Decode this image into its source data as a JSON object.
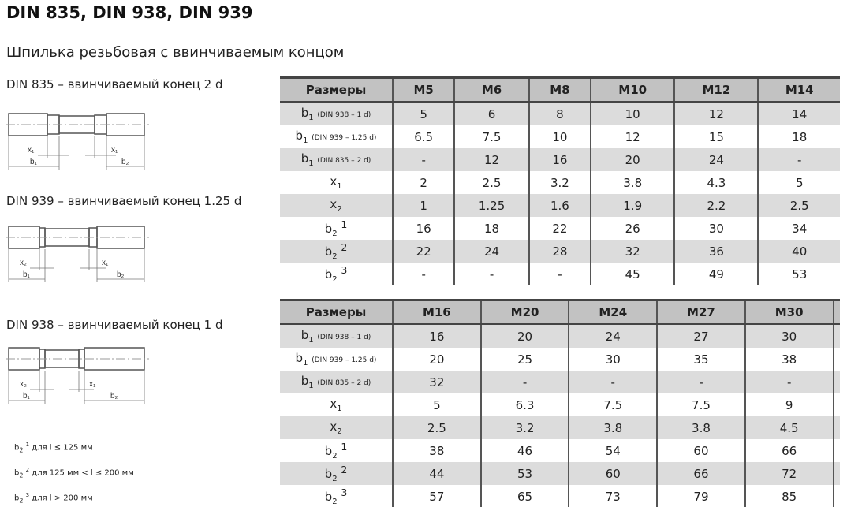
{
  "title": "DIN 835, DIN 938, DIN 939",
  "subtitle": "Шпилька резьбовая с ввинчиваемым концом",
  "figures": [
    {
      "caption": "DIN 835 – ввинчиваемый конец 2 d",
      "left_x": "x₁",
      "left_b": "b₁",
      "right_x": "x₁",
      "right_b": "b₂"
    },
    {
      "caption": "DIN 939 – ввинчиваемый конец 1.25 d",
      "left_x": "x₂",
      "left_b": "b₁",
      "right_x": "x₁",
      "right_b": "b₂"
    },
    {
      "caption": "DIN 938 – ввинчиваемый конец 1 d",
      "left_x": "x₂",
      "left_b": "b₁",
      "right_x": "x₁",
      "right_b": "b₂"
    }
  ],
  "notes": [
    {
      "sup": "1",
      "text": "для l ≤ 125 мм"
    },
    {
      "sup": "2",
      "text": "для 125 мм < l ≤ 200 мм"
    },
    {
      "sup": "3",
      "text": "для l > 200 мм"
    }
  ],
  "row_labels": [
    {
      "base": "b",
      "sub": "1",
      "note": "(DIN 938 – 1 d)"
    },
    {
      "base": "b",
      "sub": "1",
      "note": "(DIN 939 – 1.25 d)"
    },
    {
      "base": "b",
      "sub": "1",
      "note": "(DIN 835 – 2 d)"
    },
    {
      "base": "x",
      "sub": "1",
      "note": ""
    },
    {
      "base": "x",
      "sub": "2",
      "note": ""
    },
    {
      "base": "b",
      "sub": "2",
      "sup": "1"
    },
    {
      "base": "b",
      "sub": "2",
      "sup": "2"
    },
    {
      "base": "b",
      "sub": "2",
      "sup": "3"
    }
  ],
  "tables": [
    {
      "header": [
        "Размеры",
        "M5",
        "M6",
        "M8",
        "M10",
        "M12",
        "M14"
      ],
      "rows": [
        [
          "5",
          "6",
          "8",
          "10",
          "12",
          "14"
        ],
        [
          "6.5",
          "7.5",
          "10",
          "12",
          "15",
          "18"
        ],
        [
          "-",
          "12",
          "16",
          "20",
          "24",
          "-"
        ],
        [
          "2",
          "2.5",
          "3.2",
          "3.8",
          "4.3",
          "5"
        ],
        [
          "1",
          "1.25",
          "1.6",
          "1.9",
          "2.2",
          "2.5"
        ],
        [
          "16",
          "18",
          "22",
          "26",
          "30",
          "34"
        ],
        [
          "22",
          "24",
          "28",
          "32",
          "36",
          "40"
        ],
        [
          "-",
          "-",
          "-",
          "45",
          "49",
          "53"
        ]
      ]
    },
    {
      "header": [
        "Размеры",
        "M16",
        "M20",
        "M24",
        "M27",
        "M30",
        ""
      ],
      "rows": [
        [
          "16",
          "20",
          "24",
          "27",
          "30",
          ""
        ],
        [
          "20",
          "25",
          "30",
          "35",
          "38",
          ""
        ],
        [
          "32",
          "-",
          "-",
          "-",
          "-",
          ""
        ],
        [
          "5",
          "6.3",
          "7.5",
          "7.5",
          "9",
          ""
        ],
        [
          "2.5",
          "3.2",
          "3.8",
          "3.8",
          "4.5",
          ""
        ],
        [
          "38",
          "46",
          "54",
          "60",
          "66",
          ""
        ],
        [
          "44",
          "53",
          "60",
          "66",
          "72",
          ""
        ],
        [
          "57",
          "65",
          "73",
          "79",
          "85",
          ""
        ]
      ]
    }
  ]
}
